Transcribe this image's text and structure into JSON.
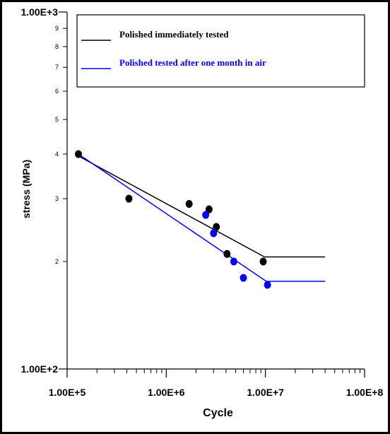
{
  "chart_data": {
    "type": "scatter",
    "xscale": "log",
    "yscale": "log",
    "xlim": [
      100000,
      100000000
    ],
    "ylim": [
      100,
      1000
    ],
    "xlabel": "Cycle",
    "ylabel": "stress (MPa)",
    "x_major_ticks": [
      {
        "value": 100000,
        "label": "1.00E+5"
      },
      {
        "value": 1000000,
        "label": "1.00E+6"
      },
      {
        "value": 10000000,
        "label": "1.00E+7"
      },
      {
        "value": 100000000,
        "label": "1.00E+8"
      }
    ],
    "y_major_ticks": [
      {
        "value": 100,
        "label": "1.00E+2"
      },
      {
        "value": 1000,
        "label": "1.00E+3"
      }
    ],
    "y_minor_ticks": [
      {
        "value": 200,
        "label": "2"
      },
      {
        "value": 300,
        "label": "3"
      },
      {
        "value": 400,
        "label": "4"
      },
      {
        "value": 500,
        "label": "5"
      },
      {
        "value": 600,
        "label": "6"
      },
      {
        "value": 700,
        "label": "7"
      },
      {
        "value": 800,
        "label": "8"
      },
      {
        "value": 900,
        "label": "9"
      }
    ],
    "legend_position": "top-right",
    "series": [
      {
        "name": "Polished immediately tested",
        "color": "#000000",
        "points": [
          {
            "x": 130000,
            "y": 400
          },
          {
            "x": 420000,
            "y": 300
          },
          {
            "x": 1700000,
            "y": 290
          },
          {
            "x": 2700000,
            "y": 280
          },
          {
            "x": 3200000,
            "y": 250
          },
          {
            "x": 4100000,
            "y": 210
          },
          {
            "x": 9500000,
            "y": 200
          }
        ],
        "fit_line": [
          {
            "x": 130000,
            "y": 395
          },
          {
            "x": 9800000,
            "y": 206
          },
          {
            "x": 40000000,
            "y": 206
          }
        ]
      },
      {
        "name": "Polished tested after    one month in air",
        "color": "#0000ff",
        "points": [
          {
            "x": 2500000,
            "y": 270
          },
          {
            "x": 3000000,
            "y": 240
          },
          {
            "x": 4800000,
            "y": 200
          },
          {
            "x": 6000000,
            "y": 180
          },
          {
            "x": 10500000,
            "y": 172
          }
        ],
        "fit_line": [
          {
            "x": 130000,
            "y": 400
          },
          {
            "x": 10200000,
            "y": 176
          },
          {
            "x": 40000000,
            "y": 176
          }
        ]
      }
    ]
  }
}
